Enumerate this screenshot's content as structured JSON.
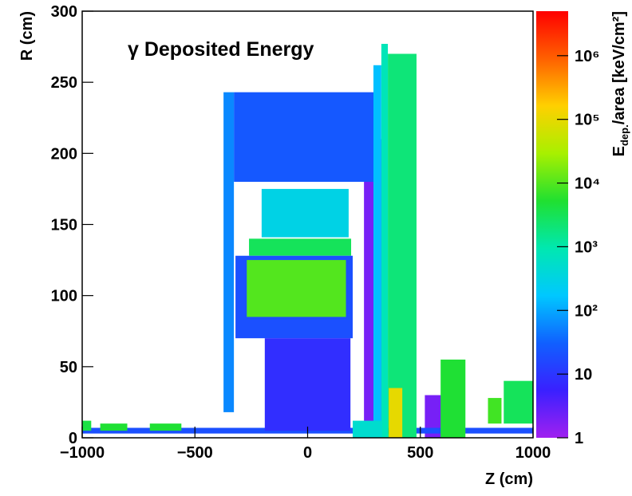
{
  "chart_data": {
    "type": "heatmap",
    "title": "γ Deposited Energy",
    "x_label": "Z (cm)",
    "y_label": "R (cm)",
    "colorbar_label": {
      "main": "E",
      "sub": "dep.",
      "rest": "/area [keV/cm²]"
    },
    "xlim": [
      -1000,
      1000
    ],
    "ylim": [
      0,
      300
    ],
    "zlim": [
      1,
      5000000
    ],
    "zlog": true,
    "xticks": [
      {
        "value": -1000,
        "label": "−1000"
      },
      {
        "value": -500,
        "label": "−500"
      },
      0,
      500,
      1000
    ],
    "yticks": [
      0,
      50,
      100,
      150,
      200,
      250,
      300
    ],
    "zticks": [
      1,
      10,
      {
        "value": 100,
        "label": "10²"
      },
      {
        "value": 1000,
        "label": "10³"
      },
      {
        "value": 10000,
        "label": "10⁴"
      },
      {
        "value": 100000,
        "label": "10⁵"
      },
      {
        "value": 1000000,
        "label": "10⁶"
      }
    ],
    "palette": [
      "#a020f0",
      "#3a20ff",
      "#1060ff",
      "#00c8ff",
      "#00e8b0",
      "#20e030",
      "#a8f000",
      "#ffd000",
      "#ff6000",
      "#ff0000"
    ],
    "regions": [
      {
        "x": [
          250,
          345
        ],
        "y": [
          0,
          210
        ],
        "value": 2
      },
      {
        "x": [
          520,
          600
        ],
        "y": [
          0,
          30
        ],
        "value": 2
      },
      {
        "x": [
          -1000,
          1000
        ],
        "y": [
          3,
          7
        ],
        "value": 20
      },
      {
        "x": [
          -327,
          306
        ],
        "y": [
          180,
          243
        ],
        "value": 25
      },
      {
        "x": [
          -373,
          -327
        ],
        "y": [
          18,
          243
        ],
        "value": 60
      },
      {
        "x": [
          -204,
          182
        ],
        "y": [
          141,
          175
        ],
        "value": 300
      },
      {
        "x": [
          -260,
          193
        ],
        "y": [
          128,
          140
        ],
        "value": 3000
      },
      {
        "x": [
          -320,
          200
        ],
        "y": [
          70,
          128
        ],
        "value": 20
      },
      {
        "x": [
          -270,
          170
        ],
        "y": [
          85,
          125
        ],
        "value": 10000
      },
      {
        "x": [
          -190,
          190
        ],
        "y": [
          5,
          70
        ],
        "value": 8
      },
      {
        "x": [
          292,
          327
        ],
        "y": [
          0,
          262
        ],
        "value": 150
      },
      {
        "x": [
          327,
          356
        ],
        "y": [
          0,
          277
        ],
        "value": 800
      },
      {
        "x": [
          356,
          483
        ],
        "y": [
          0,
          270
        ],
        "value": 2000
      },
      {
        "x": [
          360,
          420
        ],
        "y": [
          0,
          35
        ],
        "value": 100000
      },
      {
        "x": [
          590,
          700
        ],
        "y": [
          0,
          55
        ],
        "value": 5000
      },
      {
        "x": [
          800,
          860
        ],
        "y": [
          10,
          28
        ],
        "value": 8000
      },
      {
        "x": [
          870,
          1000
        ],
        "y": [
          10,
          40
        ],
        "value": 3000
      },
      {
        "x": [
          -1000,
          -960
        ],
        "y": [
          5,
          12
        ],
        "value": 4000
      },
      {
        "x": [
          -920,
          -800
        ],
        "y": [
          5,
          10
        ],
        "value": 5000
      },
      {
        "x": [
          -700,
          -560
        ],
        "y": [
          5,
          10
        ],
        "value": 5000
      },
      {
        "x": [
          200,
          330
        ],
        "y": [
          0,
          12
        ],
        "value": 500
      }
    ]
  }
}
